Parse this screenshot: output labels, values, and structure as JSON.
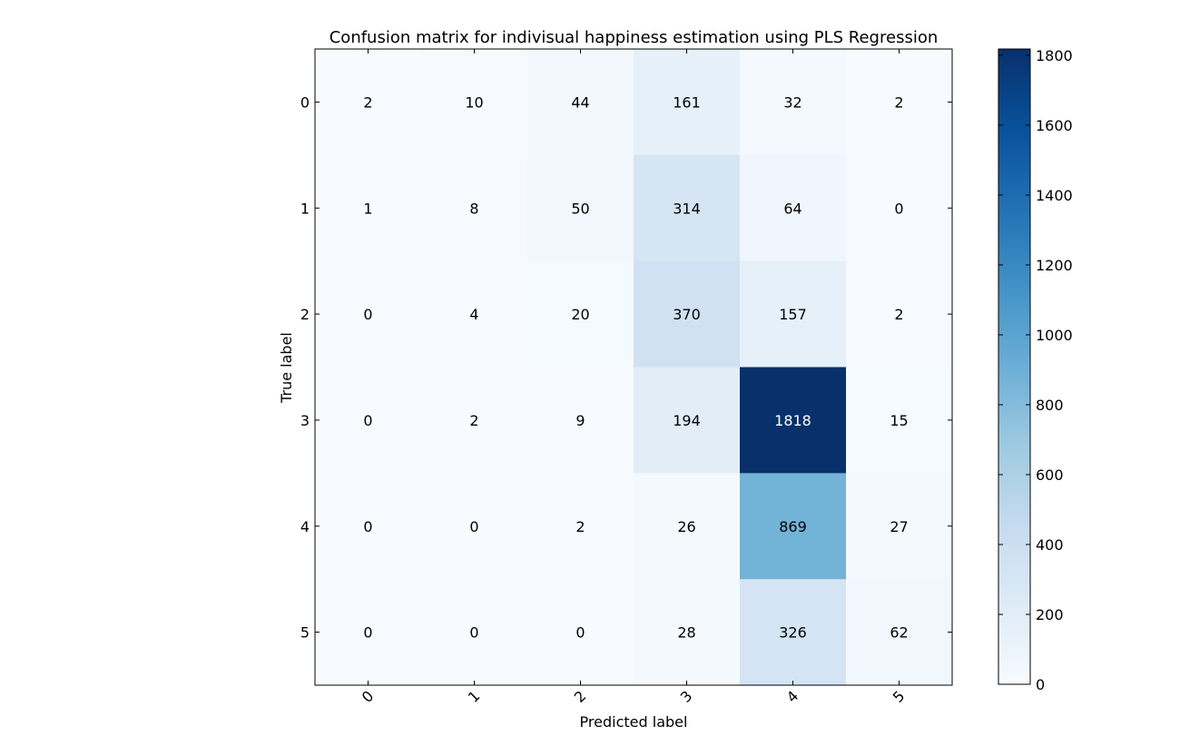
{
  "chart_data": {
    "type": "heatmap",
    "title": "Confusion matrix for indivisual happiness estimation using PLS Regression",
    "xlabel": "Predicted label",
    "ylabel": "True label",
    "x_ticks": [
      "0",
      "1",
      "2",
      "3",
      "4",
      "5"
    ],
    "y_ticks": [
      "0",
      "1",
      "2",
      "3",
      "4",
      "5"
    ],
    "matrix": [
      [
        2,
        10,
        44,
        161,
        32,
        2
      ],
      [
        1,
        8,
        50,
        314,
        64,
        0
      ],
      [
        0,
        4,
        20,
        370,
        157,
        2
      ],
      [
        0,
        2,
        9,
        194,
        1818,
        15
      ],
      [
        0,
        0,
        2,
        26,
        869,
        27
      ],
      [
        0,
        0,
        0,
        28,
        326,
        62
      ]
    ],
    "colormap": "Blues",
    "color_range": [
      0,
      1818
    ],
    "colorbar": {
      "ticks": [
        0,
        200,
        400,
        600,
        800,
        1000,
        1200,
        1400,
        1600,
        1800
      ]
    },
    "grid": false
  }
}
